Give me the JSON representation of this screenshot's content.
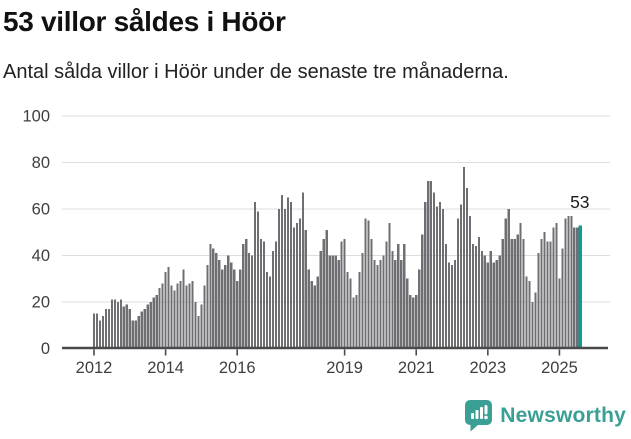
{
  "header": {
    "title": "53 villor såldes i Höör",
    "subtitle": "Antal sålda villor i Höör under de senaste tre månaderna."
  },
  "chart_data": {
    "type": "bar",
    "title": "53 villor såldes i Höör",
    "xlabel": "",
    "ylabel": "",
    "x_monthly_start": "2012-01",
    "x_monthly_end": "2025-08",
    "values": [
      15,
      15,
      12,
      14,
      17,
      17,
      21,
      21,
      20,
      21,
      18,
      19,
      17,
      12,
      12,
      14,
      16,
      17,
      19,
      20,
      22,
      23,
      26,
      28,
      33,
      35,
      27,
      25,
      28,
      29,
      34,
      27,
      28,
      29,
      20,
      14,
      19,
      27,
      36,
      45,
      43,
      41,
      38,
      34,
      36,
      40,
      37,
      34,
      29,
      34,
      45,
      47,
      41,
      40,
      63,
      59,
      47,
      46,
      33,
      31,
      42,
      46,
      60,
      66,
      60,
      65,
      63,
      52,
      54,
      56,
      67,
      51,
      34,
      29,
      27,
      31,
      42,
      47,
      51,
      40,
      40,
      40,
      38,
      46,
      47,
      33,
      30,
      22,
      23,
      33,
      41,
      56,
      55,
      47,
      38,
      36,
      38,
      40,
      46,
      54,
      42,
      38,
      45,
      38,
      45,
      30,
      23,
      22,
      23,
      34,
      49,
      63,
      72,
      72,
      67,
      61,
      63,
      60,
      45,
      37,
      36,
      38,
      56,
      62,
      78,
      69,
      57,
      45,
      44,
      48,
      42,
      40,
      37,
      42,
      37,
      38,
      40,
      47,
      56,
      60,
      47,
      47,
      49,
      54,
      47,
      31,
      29,
      20,
      24,
      41,
      47,
      50,
      46,
      46,
      52,
      54,
      30,
      43,
      56,
      57,
      57,
      52,
      52,
      53
    ],
    "highlight_last": true,
    "last_value_label": "53",
    "ylim": [
      0,
      100
    ],
    "yticks": [
      "0",
      "20",
      "40",
      "60",
      "80",
      "100"
    ],
    "ytick_values": [
      0,
      20,
      40,
      60,
      80,
      100
    ],
    "xticks": [
      "2012",
      "2014",
      "2016",
      "2019",
      "2021",
      "2023",
      "2025"
    ],
    "xtick_years": [
      2012,
      2014,
      2016,
      2019,
      2021,
      2023,
      2025
    ],
    "grid": "horizontal",
    "legend": "none",
    "colors": {
      "bar": "#6f6f73",
      "highlight": "#129992",
      "grid": "#dddddd",
      "axis": "#4a4a4c",
      "tick_label": "#3f3f3f",
      "annotation": "#1a1a1a"
    }
  },
  "footer": {
    "brand": "Newsworthy",
    "brand_color": "#3aa096"
  }
}
